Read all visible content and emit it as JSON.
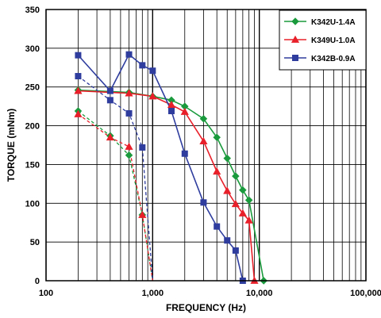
{
  "chart_data": {
    "type": "line",
    "title": "",
    "xlabel": "FREQUENCY (Hz)",
    "ylabel": "TORQUE (mNm)",
    "xscale": "log",
    "xlim": [
      100,
      100000
    ],
    "ylim": [
      0,
      350
    ],
    "x_tick_values": [
      100,
      1000,
      10000,
      100000
    ],
    "x_tick_labels": [
      "100",
      "1,000",
      "10,000",
      "100,000"
    ],
    "y_ticks": [
      0,
      50,
      100,
      150,
      200,
      250,
      300,
      350
    ],
    "grid": true,
    "legend_position": "top-right",
    "series": [
      {
        "name": "K342U-1.4A",
        "color": "#1a9a3c",
        "marker": "diamond",
        "solid": {
          "x": [
            200,
            600,
            1000,
            1500,
            2000,
            3000,
            4000,
            5000,
            6000,
            7000,
            8000,
            11000
          ],
          "y": [
            246,
            243,
            238,
            233,
            225,
            209,
            185,
            158,
            135,
            117,
            104,
            0
          ]
        },
        "dashed": {
          "x": [
            200,
            400,
            600,
            800,
            1000
          ],
          "y": [
            219,
            187,
            162,
            85,
            0
          ]
        }
      },
      {
        "name": "K349U-1.0A",
        "color": "#e8202a",
        "marker": "triangle",
        "solid": {
          "x": [
            200,
            600,
            1000,
            1500,
            2000,
            3000,
            4000,
            5000,
            6000,
            7000,
            8000,
            9000
          ],
          "y": [
            245,
            242,
            238,
            227,
            218,
            180,
            141,
            116,
            99,
            87,
            78,
            0
          ]
        },
        "dashed": {
          "x": [
            200,
            400,
            600,
            800,
            1000
          ],
          "y": [
            215,
            185,
            173,
            85,
            0
          ]
        }
      },
      {
        "name": "K342B-0.9A",
        "color": "#2e3d9e",
        "marker": "square",
        "solid": {
          "x": [
            200,
            400,
            600,
            800,
            1000,
            1500,
            2000,
            3000,
            4000,
            5000,
            6000,
            7000
          ],
          "y": [
            291,
            245,
            292,
            278,
            271,
            219,
            164,
            101,
            70,
            52,
            39,
            0
          ]
        },
        "dashed": {
          "x": [
            200,
            400,
            600,
            800,
            1000
          ],
          "y": [
            264,
            233,
            216,
            172,
            0
          ]
        }
      }
    ]
  }
}
